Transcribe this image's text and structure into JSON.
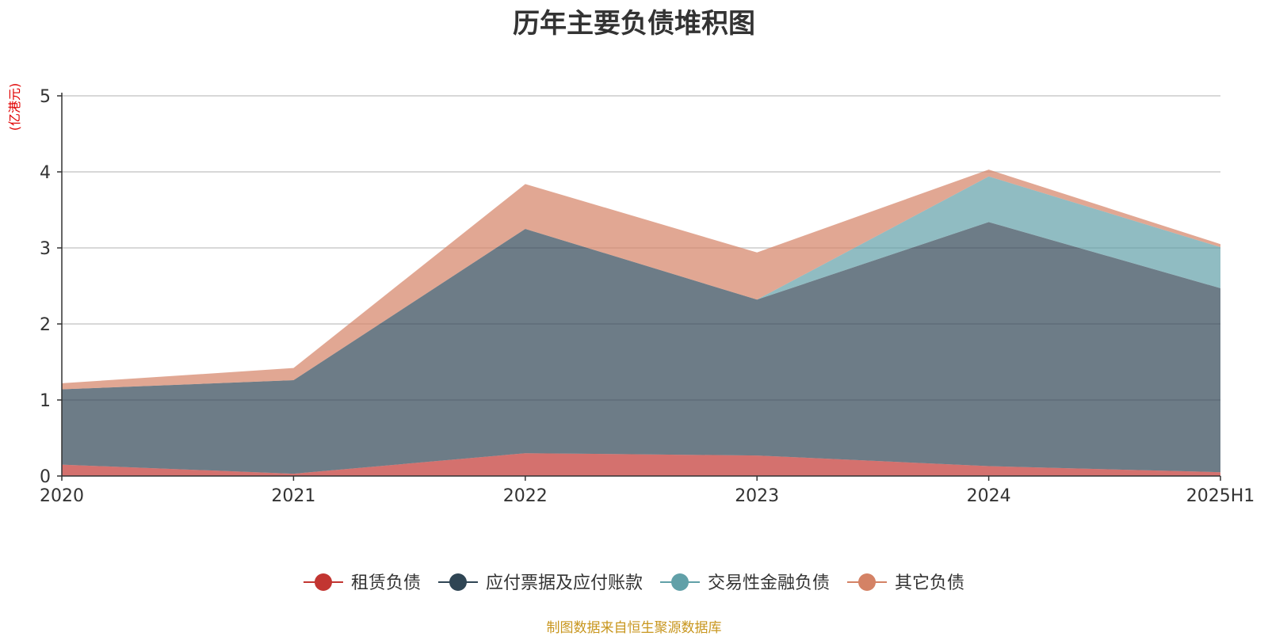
{
  "chart_data": {
    "type": "area",
    "stacked": true,
    "title": "历年主要负债堆积图",
    "unit_label": "(亿港元)",
    "categories": [
      "2020",
      "2021",
      "2022",
      "2023",
      "2024",
      "2025H1"
    ],
    "ylim": [
      0,
      5
    ],
    "yticks": [
      0,
      1,
      2,
      3,
      4,
      5
    ],
    "grid": true,
    "legend_position": "bottom-center",
    "series": [
      {
        "name": "租赁负债",
        "color": "#c23531",
        "values": [
          0.15,
          0.03,
          0.3,
          0.27,
          0.13,
          0.05
        ]
      },
      {
        "name": "应付票据及应付账款",
        "color": "#2f4554",
        "values": [
          0.99,
          1.23,
          2.95,
          2.05,
          3.21,
          2.42
        ]
      },
      {
        "name": "交易性金融负债",
        "color": "#61a0a8",
        "values": [
          0.0,
          0.0,
          0.0,
          0.0,
          0.6,
          0.54
        ]
      },
      {
        "name": "其它负债",
        "color": "#d48265",
        "values": [
          0.08,
          0.16,
          0.59,
          0.62,
          0.09,
          0.04
        ]
      }
    ]
  },
  "footer": {
    "source": "制图数据来自恒生聚源数据库"
  }
}
